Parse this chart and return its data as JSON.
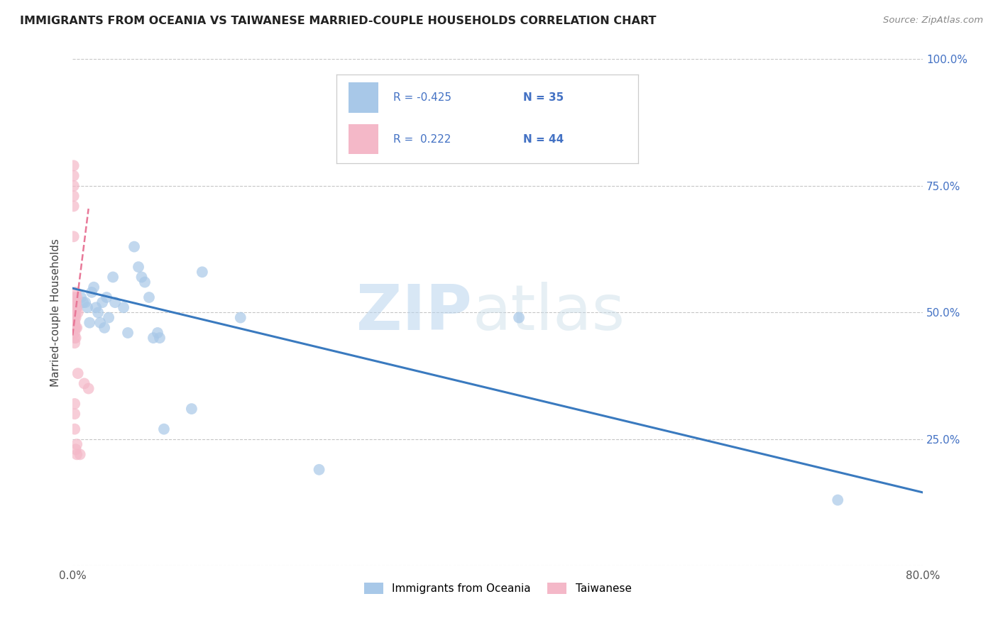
{
  "title": "IMMIGRANTS FROM OCEANIA VS TAIWANESE MARRIED-COUPLE HOUSEHOLDS CORRELATION CHART",
  "source": "Source: ZipAtlas.com",
  "ylabel": "Married-couple Households",
  "xlim": [
    0.0,
    0.8
  ],
  "ylim": [
    0.0,
    1.0
  ],
  "x_ticks": [
    0.0,
    0.1,
    0.2,
    0.3,
    0.4,
    0.5,
    0.6,
    0.7,
    0.8
  ],
  "x_tick_labels": [
    "0.0%",
    "",
    "",
    "",
    "",
    "",
    "",
    "",
    "80.0%"
  ],
  "y_ticks": [
    0.0,
    0.25,
    0.5,
    0.75,
    1.0
  ],
  "y_tick_labels_right": [
    "",
    "25.0%",
    "50.0%",
    "75.0%",
    "100.0%"
  ],
  "blue_color": "#a8c8e8",
  "pink_color": "#f4b8c8",
  "blue_line_color": "#3a7abf",
  "pink_line_color": "#e87898",
  "watermark_zip": "ZIP",
  "watermark_atlas": "atlas",
  "blue_scatter_x": [
    0.004,
    0.008,
    0.01,
    0.012,
    0.014,
    0.016,
    0.018,
    0.02,
    0.022,
    0.024,
    0.026,
    0.028,
    0.03,
    0.032,
    0.034,
    0.038,
    0.04,
    0.048,
    0.052,
    0.058,
    0.062,
    0.065,
    0.068,
    0.072,
    0.076,
    0.08,
    0.082,
    0.086,
    0.112,
    0.122,
    0.158,
    0.232,
    0.42,
    0.72
  ],
  "blue_scatter_y": [
    0.51,
    0.53,
    0.52,
    0.52,
    0.51,
    0.48,
    0.54,
    0.55,
    0.51,
    0.5,
    0.48,
    0.52,
    0.47,
    0.53,
    0.49,
    0.57,
    0.52,
    0.51,
    0.46,
    0.63,
    0.59,
    0.57,
    0.56,
    0.53,
    0.45,
    0.46,
    0.45,
    0.27,
    0.31,
    0.58,
    0.49,
    0.19,
    0.49,
    0.13
  ],
  "pink_scatter_x": [
    0.001,
    0.001,
    0.001,
    0.001,
    0.001,
    0.001,
    0.001,
    0.001,
    0.001,
    0.001,
    0.001,
    0.002,
    0.002,
    0.002,
    0.002,
    0.002,
    0.002,
    0.002,
    0.002,
    0.002,
    0.002,
    0.002,
    0.002,
    0.002,
    0.002,
    0.002,
    0.003,
    0.003,
    0.003,
    0.003,
    0.003,
    0.003,
    0.003,
    0.003,
    0.004,
    0.004,
    0.004,
    0.004,
    0.004,
    0.005,
    0.005,
    0.007,
    0.011,
    0.015
  ],
  "pink_scatter_y": [
    0.79,
    0.77,
    0.75,
    0.73,
    0.71,
    0.65,
    0.53,
    0.51,
    0.5,
    0.49,
    0.49,
    0.52,
    0.52,
    0.51,
    0.5,
    0.49,
    0.48,
    0.48,
    0.47,
    0.47,
    0.46,
    0.45,
    0.44,
    0.32,
    0.3,
    0.27,
    0.54,
    0.52,
    0.52,
    0.5,
    0.49,
    0.47,
    0.45,
    0.23,
    0.53,
    0.51,
    0.47,
    0.24,
    0.22,
    0.5,
    0.38,
    0.22,
    0.36,
    0.35
  ],
  "blue_trend_x": [
    0.0,
    0.8
  ],
  "blue_trend_y": [
    0.548,
    0.145
  ],
  "pink_trend_x": [
    0.0,
    0.015
  ],
  "pink_trend_y": [
    0.455,
    0.705
  ]
}
